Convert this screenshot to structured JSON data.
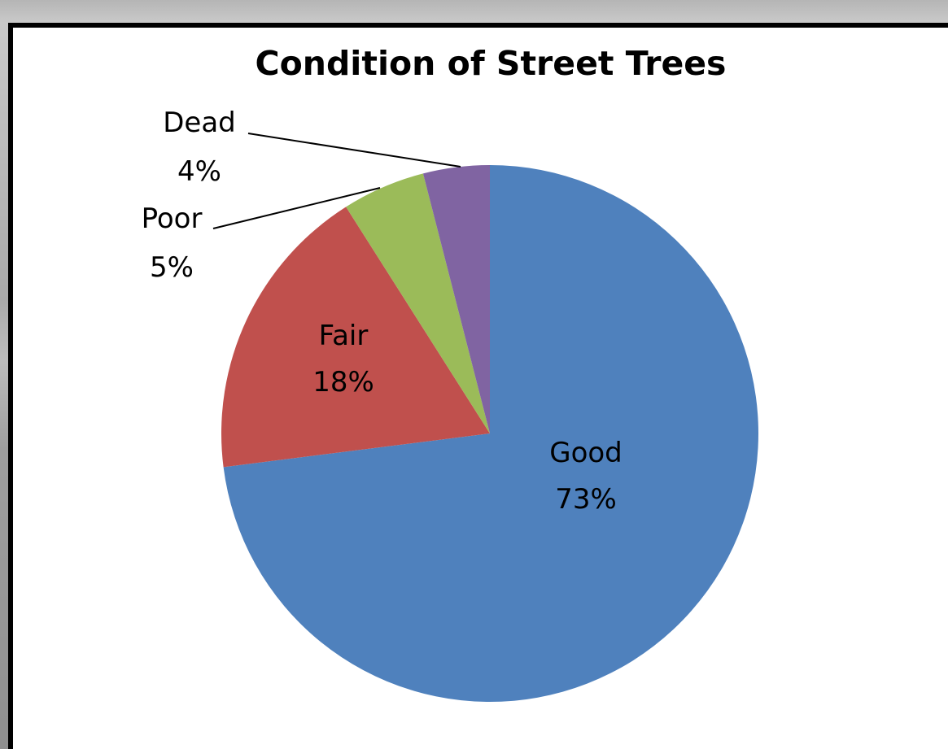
{
  "chart_data": {
    "type": "pie",
    "title": "Condition of Street Trees",
    "slices": [
      {
        "label": "Good",
        "value": 73,
        "value_label": "73%",
        "color": "#4f81bd"
      },
      {
        "label": "Fair",
        "value": 18,
        "value_label": "18%",
        "color": "#c0504d"
      },
      {
        "label": "Poor",
        "value": 5,
        "value_label": "5%",
        "color": "#9bbb59"
      },
      {
        "label": "Dead",
        "value": 4,
        "value_label": "4%",
        "color": "#8064a2"
      }
    ],
    "start_angle": "12 o'clock",
    "direction": "clockwise",
    "legend": "none",
    "background": "#ffffff",
    "border_color": "#000000"
  }
}
